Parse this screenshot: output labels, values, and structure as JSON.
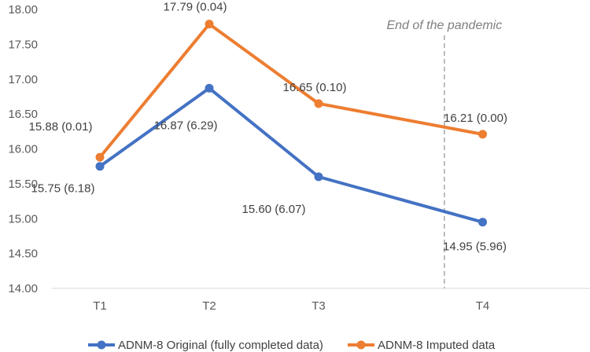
{
  "chart_data": {
    "type": "line",
    "categories": [
      "T1",
      "T2",
      "T3",
      "T4"
    ],
    "x_positions": [
      0,
      1,
      2,
      3.5
    ],
    "ylim": [
      14.0,
      18.0
    ],
    "yticks": [
      "14.00",
      "14.50",
      "15.00",
      "15.50",
      "16.00",
      "16.50",
      "17.00",
      "17.50",
      "18.00"
    ],
    "series": [
      {
        "name": "ADNM-8 Original (fully completed data)",
        "color": "#4472c4",
        "values": [
          15.75,
          16.87,
          15.6,
          14.95
        ],
        "labels": [
          "15.75 (6.18)",
          "16.87 (6.29)",
          "15.60 (6.07)",
          "14.95 (5.96)"
        ]
      },
      {
        "name": "ADNM-8 Imputed data",
        "color": "#ed7d31",
        "values": [
          15.88,
          17.79,
          16.65,
          16.21
        ],
        "labels": [
          "15.88 (0.01)",
          "17.79 (0.04)",
          "16.65 (0.10)",
          "16.21 (0.00)"
        ]
      }
    ],
    "annotation": "End of the pandemic",
    "annotation_x": 3.15,
    "legend_position": "bottom"
  }
}
